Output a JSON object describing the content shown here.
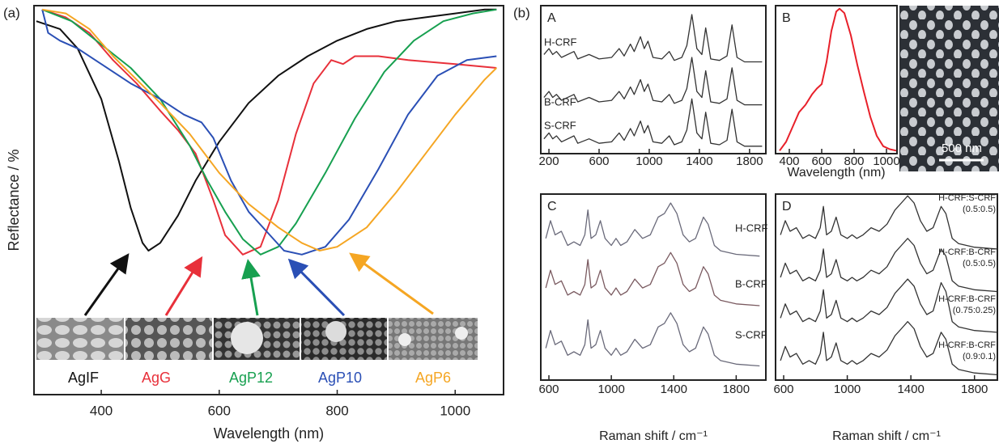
{
  "figure": {
    "labels": [
      "(a)",
      "(b)"
    ],
    "scale_bar": "500 nm"
  },
  "chart_data": [
    {
      "type": "line",
      "xlabel": "Wavelength (nm)",
      "ylabel": "Reflectance / %",
      "xlim": [
        286,
        1082
      ],
      "ylim": [
        0,
        100
      ],
      "xticks": [
        400,
        600,
        800,
        1000
      ],
      "series": [
        {
          "name": "AgIF",
          "color": "#111111",
          "x": [
            290,
            330,
            360,
            400,
            430,
            450,
            470,
            480,
            500,
            530,
            560,
            600,
            650,
            700,
            750,
            800,
            850,
            900,
            950,
            1000,
            1050,
            1070
          ],
          "values": [
            96,
            94,
            89,
            76,
            60,
            48,
            39,
            37,
            39,
            46,
            55,
            65,
            75,
            82,
            87,
            91,
            94,
            96,
            97,
            98,
            99,
            99
          ]
        },
        {
          "name": "AgG",
          "color": "#e8303a",
          "x": [
            300,
            340,
            380,
            420,
            460,
            500,
            530,
            560,
            590,
            610,
            640,
            670,
            700,
            730,
            760,
            790,
            810,
            830,
            870,
            920,
            1000,
            1070
          ],
          "values": [
            99,
            97,
            93,
            86,
            80,
            73,
            68,
            62,
            50,
            41,
            36,
            38,
            50,
            67,
            80,
            86,
            85,
            87,
            87,
            86,
            85,
            84
          ]
        },
        {
          "name": "AgP12",
          "color": "#17a050",
          "x": [
            300,
            350,
            400,
            450,
            500,
            550,
            580,
            610,
            640,
            670,
            700,
            730,
            780,
            830,
            880,
            930,
            980,
            1030,
            1070
          ],
          "values": [
            99,
            96,
            90,
            84,
            76,
            64,
            55,
            47,
            40,
            36,
            38,
            44,
            57,
            71,
            83,
            91,
            96,
            98,
            99
          ]
        },
        {
          "name": "AgP10",
          "color": "#2a4fb5",
          "x": [
            300,
            310,
            330,
            360,
            400,
            450,
            500,
            540,
            570,
            590,
            620,
            650,
            680,
            710,
            740,
            780,
            820,
            870,
            920,
            970,
            1020,
            1070
          ],
          "values": [
            99,
            93,
            91,
            89,
            85,
            80,
            76,
            72,
            70,
            66,
            55,
            47,
            42,
            37,
            36,
            38,
            45,
            58,
            72,
            82,
            86,
            87
          ]
        },
        {
          "name": "AgP6",
          "color": "#f5a623",
          "x": [
            300,
            340,
            380,
            420,
            460,
            500,
            550,
            600,
            650,
            700,
            740,
            770,
            800,
            850,
            900,
            950,
            1000,
            1050,
            1070
          ],
          "values": [
            99,
            98,
            94,
            87,
            81,
            75,
            67,
            57,
            49,
            43,
            39,
            37,
            38,
            43,
            52,
            62,
            72,
            81,
            84
          ]
        }
      ]
    },
    {
      "type": "line",
      "panel": "A",
      "xlim": [
        135,
        1930
      ],
      "ylim": [
        0,
        100
      ],
      "xticks": [
        200,
        600,
        1000,
        1400,
        1800
      ],
      "x": [
        160,
        200,
        230,
        260,
        300,
        400,
        430,
        520,
        600,
        700,
        760,
        800,
        850,
        880,
        930,
        960,
        990,
        1030,
        1100,
        1160,
        1200,
        1260,
        1300,
        1340,
        1380,
        1420,
        1450,
        1490,
        1560,
        1620,
        1660,
        1700,
        1760,
        1900
      ],
      "series": [
        {
          "name": "H-CRF",
          "color": "#333333",
          "values": [
            67,
            71,
            67,
            69,
            65,
            69,
            64,
            67,
            64,
            65,
            71,
            66,
            74,
            69,
            79,
            71,
            76,
            65,
            64,
            69,
            63,
            65,
            73,
            94,
            71,
            67,
            85,
            64,
            63,
            66,
            87,
            65,
            62,
            62
          ]
        },
        {
          "name": "B-CRF",
          "color": "#333333",
          "values": [
            38,
            42,
            38,
            40,
            36,
            40,
            35,
            38,
            35,
            36,
            42,
            37,
            45,
            40,
            50,
            42,
            47,
            36,
            35,
            40,
            34,
            36,
            44,
            65,
            42,
            38,
            56,
            35,
            34,
            37,
            58,
            36,
            33,
            33
          ]
        },
        {
          "name": "S-CRF",
          "color": "#333333",
          "values": [
            10,
            14,
            10,
            12,
            8,
            12,
            7,
            10,
            7,
            8,
            14,
            9,
            17,
            12,
            22,
            14,
            19,
            8,
            7,
            12,
            6,
            8,
            16,
            37,
            14,
            10,
            28,
            7,
            6,
            9,
            30,
            8,
            5,
            5
          ]
        }
      ]
    },
    {
      "type": "line",
      "panel": "B",
      "xlabel": "Wavelength (nm)",
      "xlim": [
        315,
        1065
      ],
      "ylim": [
        0,
        100
      ],
      "xticks": [
        400,
        600,
        800,
        1000
      ],
      "series": [
        {
          "color": "#e8202a",
          "x": [
            340,
            380,
            420,
            460,
            500,
            540,
            570,
            600,
            630,
            660,
            690,
            710,
            740,
            780,
            820,
            860,
            900,
            940,
            980,
            1020,
            1060
          ],
          "values": [
            2,
            8,
            18,
            28,
            33,
            40,
            44,
            47,
            62,
            83,
            96,
            98,
            95,
            80,
            60,
            42,
            25,
            12,
            5,
            3,
            2
          ]
        }
      ]
    },
    {
      "type": "line",
      "panel": "C",
      "xlabel": "Raman shift / cm⁻¹",
      "xlim": [
        548,
        1990
      ],
      "ylim": [
        0,
        105
      ],
      "xticks": [
        600,
        1000,
        1400,
        1800
      ],
      "x": [
        580,
        610,
        640,
        680,
        720,
        760,
        800,
        830,
        850,
        870,
        900,
        930,
        960,
        1000,
        1030,
        1060,
        1100,
        1150,
        1200,
        1250,
        1300,
        1340,
        1380,
        1420,
        1460,
        1500,
        1540,
        1590,
        1620,
        1660,
        1700,
        1800,
        1950
      ],
      "series": [
        {
          "name": "H-CRF",
          "color": "#6a6a7a",
          "values": [
            80,
            90,
            82,
            84,
            76,
            78,
            76,
            82,
            96,
            80,
            82,
            90,
            80,
            76,
            80,
            76,
            78,
            85,
            80,
            82,
            92,
            94,
            100,
            94,
            82,
            78,
            80,
            92,
            88,
            76,
            73,
            71,
            70
          ]
        },
        {
          "name": "B-CRF",
          "color": "#7a5a60",
          "values": [
            52,
            62,
            54,
            56,
            48,
            50,
            48,
            54,
            68,
            52,
            54,
            62,
            52,
            48,
            52,
            48,
            50,
            57,
            52,
            54,
            64,
            66,
            72,
            66,
            54,
            50,
            52,
            64,
            60,
            48,
            45,
            43,
            42
          ]
        },
        {
          "name": "S-CRF",
          "color": "#6a6a7a",
          "values": [
            18,
            28,
            20,
            22,
            14,
            16,
            14,
            20,
            34,
            18,
            20,
            28,
            18,
            14,
            18,
            14,
            16,
            23,
            18,
            20,
            30,
            32,
            38,
            32,
            20,
            16,
            18,
            30,
            26,
            14,
            11,
            9,
            8
          ]
        }
      ]
    },
    {
      "type": "line",
      "panel": "D",
      "xlabel": "Raman shift / cm⁻¹",
      "xlim": [
        549,
        1944
      ],
      "ylim": [
        0,
        105
      ],
      "xticks": [
        600,
        1000,
        1400,
        1800
      ],
      "x": [
        580,
        610,
        640,
        680,
        720,
        760,
        800,
        830,
        850,
        870,
        900,
        930,
        960,
        1000,
        1030,
        1060,
        1100,
        1150,
        1200,
        1250,
        1300,
        1340,
        1380,
        1420,
        1460,
        1500,
        1540,
        1590,
        1620,
        1660,
        1700,
        1800,
        1940
      ],
      "series": [
        {
          "name": "H-CRF:S-CRF",
          "ratio": "(0.5:0.5)",
          "color": "#333333",
          "values": [
            82,
            90,
            84,
            86,
            80,
            82,
            80,
            86,
            98,
            82,
            84,
            92,
            82,
            80,
            82,
            80,
            82,
            86,
            84,
            88,
            96,
            100,
            104,
            100,
            90,
            84,
            86,
            98,
            94,
            80,
            77,
            75,
            74
          ]
        },
        {
          "name": "H-CRF:B-CRF",
          "ratio": "(0.5:0.5)",
          "color": "#333333",
          "values": [
            58,
            66,
            60,
            62,
            56,
            58,
            56,
            62,
            74,
            58,
            60,
            68,
            58,
            56,
            58,
            56,
            58,
            62,
            60,
            64,
            72,
            76,
            80,
            76,
            66,
            60,
            62,
            74,
            70,
            56,
            53,
            51,
            50
          ]
        },
        {
          "name": "H-CRF:B-CRF",
          "ratio": "(0.75:0.25)",
          "color": "#333333",
          "values": [
            35,
            43,
            37,
            39,
            33,
            35,
            33,
            39,
            51,
            35,
            37,
            45,
            35,
            33,
            35,
            33,
            35,
            39,
            37,
            41,
            49,
            53,
            57,
            53,
            43,
            37,
            39,
            55,
            50,
            33,
            30,
            28,
            27
          ]
        },
        {
          "name": "H-CRF:B-CRF",
          "ratio": "(0.9:0.1)",
          "color": "#333333",
          "values": [
            11,
            19,
            13,
            15,
            9,
            11,
            9,
            15,
            27,
            11,
            13,
            21,
            11,
            9,
            11,
            9,
            11,
            15,
            13,
            17,
            25,
            29,
            33,
            29,
            19,
            13,
            15,
            27,
            23,
            9,
            6,
            4,
            3
          ]
        }
      ]
    }
  ]
}
